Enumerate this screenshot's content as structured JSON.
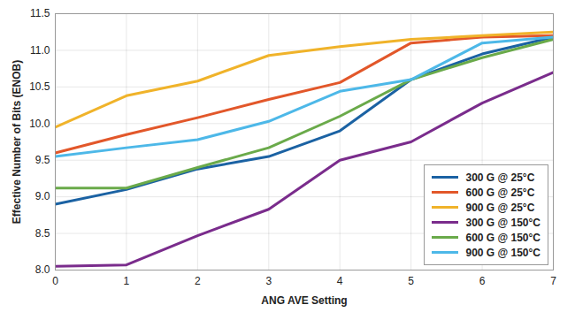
{
  "chart_data": {
    "type": "line",
    "x_label": "ANG AVE Setting",
    "y_label": "Effective Number of Bits (ENOB)",
    "x": [
      0,
      1,
      2,
      3,
      4,
      5,
      6,
      7
    ],
    "xlim": [
      0,
      7
    ],
    "xticks": [
      0,
      1,
      2,
      3,
      4,
      5,
      6,
      7
    ],
    "ylim": [
      8,
      11.5
    ],
    "yticks": [
      {
        "value": 8,
        "label": "8.0"
      },
      8.5,
      {
        "value": 9,
        "label": "9.0"
      },
      9.5,
      {
        "value": 10,
        "label": "10.0"
      },
      10.5,
      {
        "value": 11,
        "label": "11.0"
      },
      11.5
    ],
    "grid": true,
    "legend": "bottom-right",
    "series": [
      {
        "name": "300 G @ 25°C",
        "color": "#1b62a3",
        "values": [
          8.9,
          9.1,
          9.38,
          9.55,
          9.9,
          10.6,
          10.95,
          11.18
        ]
      },
      {
        "name": "600 G @ 25°C",
        "color": "#e2572a",
        "values": [
          9.6,
          9.85,
          10.08,
          10.33,
          10.56,
          11.1,
          11.18,
          11.2
        ]
      },
      {
        "name": "900 G @ 25°C",
        "color": "#f0b32a",
        "values": [
          9.95,
          10.38,
          10.58,
          10.93,
          11.05,
          11.15,
          11.2,
          11.25
        ]
      },
      {
        "name": "300 G @ 150°C",
        "color": "#7a2c8c",
        "values": [
          8.05,
          8.07,
          8.47,
          8.83,
          9.5,
          9.75,
          10.28,
          10.7
        ]
      },
      {
        "name": "600 G @ 150°C",
        "color": "#6aaa4a",
        "values": [
          9.12,
          9.12,
          9.4,
          9.67,
          10.1,
          10.6,
          10.9,
          11.15
        ]
      },
      {
        "name": "900 G @ 150°C",
        "color": "#4db8e8",
        "values": [
          9.55,
          9.67,
          9.78,
          10.03,
          10.44,
          10.6,
          11.1,
          11.18
        ]
      }
    ]
  }
}
